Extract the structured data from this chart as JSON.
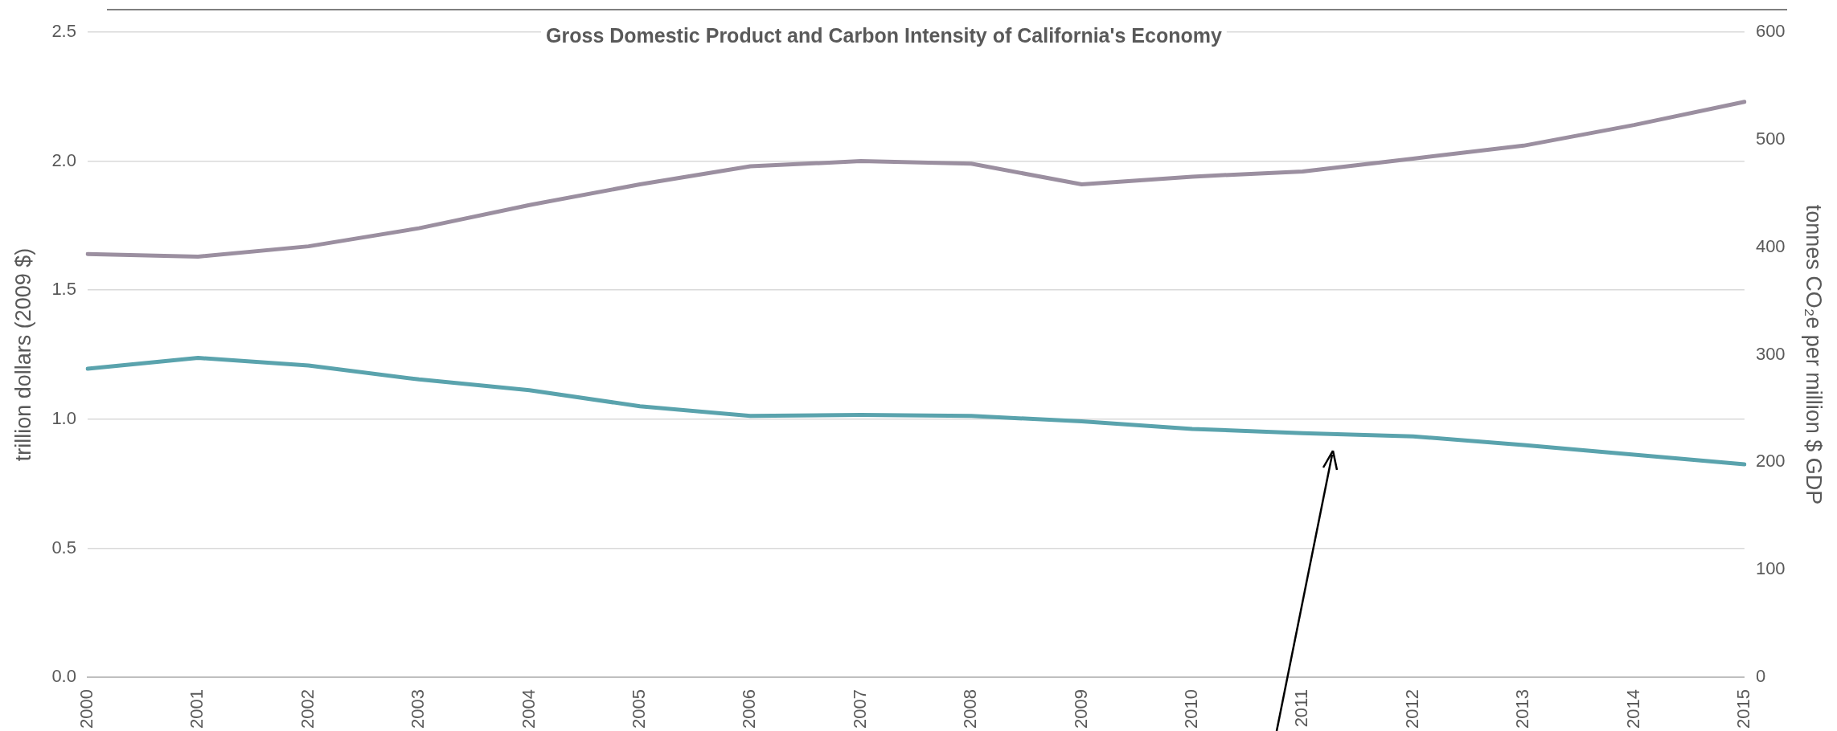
{
  "chart_data": {
    "type": "line",
    "title": "Gross Domestic Product and Carbon Intensity of California's Economy",
    "ylabel": "trillion dollars (2009 $)",
    "y2label": "tonnes CO₂e per million $ GDP",
    "categories": [
      "2000",
      "2001",
      "2002",
      "2003",
      "2004",
      "2005",
      "2006",
      "2007",
      "2008",
      "2009",
      "2010",
      "2011",
      "2012",
      "2013",
      "2014",
      "2015"
    ],
    "series": [
      {
        "color": "#9b8fa0",
        "values": [
          1.64,
          1.63,
          1.67,
          1.74,
          1.83,
          1.91,
          1.98,
          2.0,
          1.99,
          1.91,
          1.94,
          1.96,
          2.01,
          2.06,
          2.14,
          2.23
        ]
      },
      {
        "color": "#5aa3ad",
        "axis": "y2",
        "values": [
          287,
          297,
          290,
          277,
          267,
          252,
          243,
          244,
          243,
          238,
          231,
          227,
          224,
          216,
          207,
          198
        ]
      }
    ],
    "ylim": [
      0,
      2.5
    ],
    "yticks": [
      {
        "value": 0,
        "label": "0.0"
      },
      {
        "value": 0.5,
        "label": "0.5"
      },
      {
        "value": 1,
        "label": "1.0"
      },
      {
        "value": 1.5,
        "label": "1.5"
      },
      {
        "value": 2,
        "label": "2.0"
      },
      {
        "value": 2.5,
        "label": "2.5"
      }
    ],
    "y2lim": [
      0,
      600
    ],
    "y2ticks": [
      0,
      100,
      200,
      300,
      400,
      500,
      600
    ],
    "grid": "y",
    "legend": false,
    "marker": "none",
    "line_style": "solid"
  }
}
